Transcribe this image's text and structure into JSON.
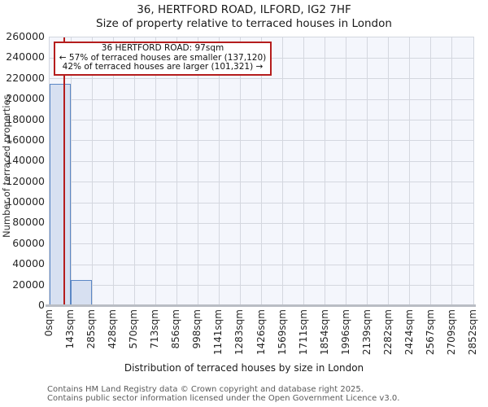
{
  "title": "36, HERTFORD ROAD, ILFORD, IG2 7HF",
  "subtitle": "Size of property relative to terraced houses in London",
  "annotation": {
    "line1": "36 HERTFORD ROAD: 97sqm",
    "line2": "← 57% of terraced houses are smaller (137,120)",
    "line3": "42% of terraced houses are larger (101,321) →"
  },
  "chart_data": {
    "type": "bar",
    "title": "36, HERTFORD ROAD, ILFORD, IG2 7HF — Size of property relative to terraced houses in London",
    "xlabel": "Distribution of terraced houses by size in London",
    "ylabel": "Number of terraced properties",
    "x_tick_labels": [
      "0sqm",
      "143sqm",
      "285sqm",
      "428sqm",
      "570sqm",
      "713sqm",
      "856sqm",
      "998sqm",
      "1141sqm",
      "1283sqm",
      "1426sqm",
      "1569sqm",
      "1711sqm",
      "1854sqm",
      "1996sqm",
      "2139sqm",
      "2282sqm",
      "2424sqm",
      "2567sqm",
      "2709sqm",
      "2852sqm"
    ],
    "bin_edges_sqm": [
      0,
      143,
      285,
      428,
      570,
      713,
      856,
      998,
      1141,
      1283,
      1426,
      1569,
      1711,
      1854,
      1996,
      2139,
      2282,
      2424,
      2567,
      2709,
      2852
    ],
    "values": [
      215000,
      25000,
      1300,
      0,
      0,
      0,
      0,
      0,
      0,
      0,
      0,
      0,
      0,
      0,
      0,
      0,
      0,
      0,
      0,
      0
    ],
    "y_ticks": [
      0,
      20000,
      40000,
      60000,
      80000,
      100000,
      120000,
      140000,
      160000,
      180000,
      200000,
      220000,
      240000,
      260000
    ],
    "ylim": [
      0,
      260000
    ],
    "xlim_sqm": [
      0,
      2852
    ],
    "grid": true,
    "legend": null,
    "marker_value_sqm": 97,
    "marker_color": "#b51d1d",
    "bar_fill": "#d7e0f1",
    "bar_edge": "#5b87c5"
  },
  "footer": {
    "line1": "Contains HM Land Registry data © Crown copyright and database right 2025.",
    "line2": "Contains public sector information licensed under the Open Government Licence v3.0."
  }
}
